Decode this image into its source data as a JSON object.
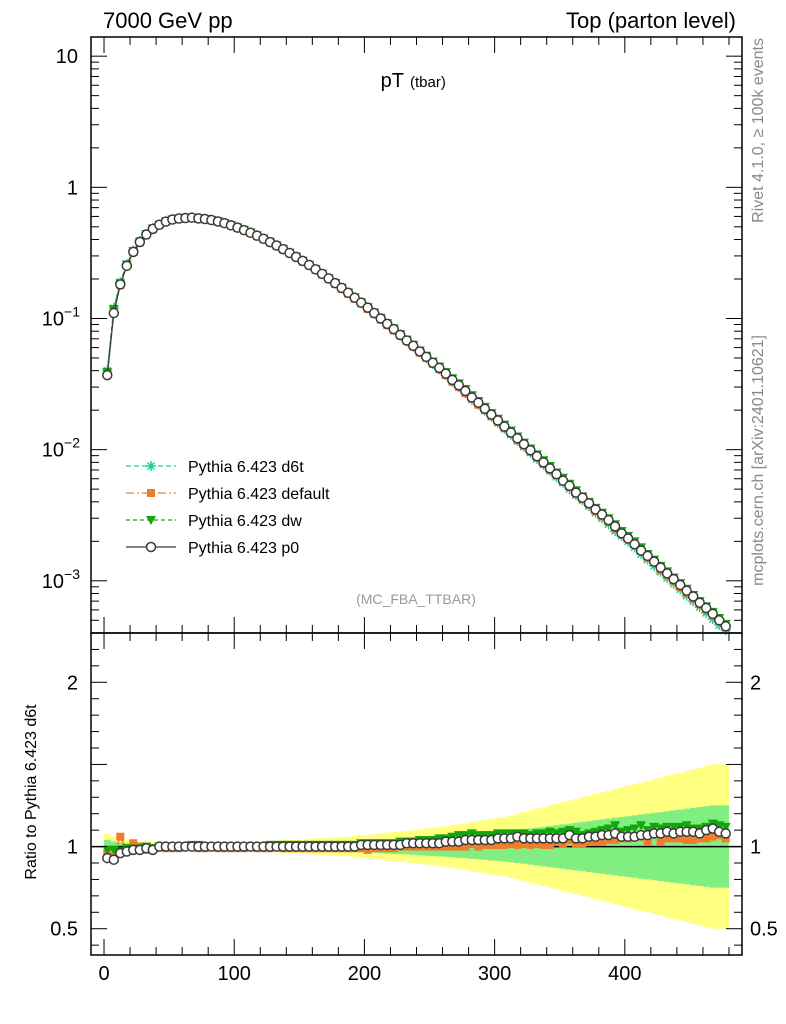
{
  "header": {
    "left": "7000 GeV pp",
    "right": "Top (parton level)"
  },
  "side_labels": {
    "rivet": "Rivet 4.1.0, ≥ 100k events",
    "mcplots": "mcplots.cern.ch [arXiv:2401.10621]"
  },
  "colors": {
    "d6t": "#1fd38a",
    "default": "#f07d2b",
    "dw": "#14a40c",
    "p0": "#3a3a3a",
    "band_outer": "#ffff80",
    "band_inner": "#80ee80"
  },
  "chart_data": [
    {
      "type": "line",
      "title": "pT",
      "title_sub": "(tbar)",
      "analysis": "(MC_FBA_TTBAR)",
      "xlabel": "",
      "ylabel": "",
      "yscale": "log",
      "xlim": [
        -10,
        490
      ],
      "ylim": [
        0.0004,
        14
      ],
      "y_ticks": [
        {
          "value": 10,
          "label": "10"
        },
        {
          "value": 1,
          "label": "1"
        },
        {
          "value": 0.1,
          "label": "10",
          "exp": "−1"
        },
        {
          "value": 0.01,
          "label": "10",
          "exp": "−2"
        },
        {
          "value": 0.001,
          "label": "10",
          "exp": "−3"
        }
      ],
      "x": [
        2.5,
        7.5,
        12.5,
        17.5,
        22.5,
        27.5,
        32.5,
        37.5,
        42.5,
        47.5,
        52.5,
        57.5,
        62.5,
        67.5,
        72.5,
        77.5,
        82.5,
        87.5,
        92.5,
        97.5,
        102.5,
        107.5,
        112.5,
        117.5,
        122.5,
        127.5,
        132.5,
        137.5,
        142.5,
        147.5,
        152.5,
        157.5,
        162.5,
        167.5,
        172.5,
        177.5,
        182.5,
        187.5,
        192.5,
        197.5,
        202.5,
        207.5,
        212.5,
        217.5,
        222.5,
        227.5,
        232.5,
        237.5,
        242.5,
        247.5,
        252.5,
        257.5,
        262.5,
        267.5,
        272.5,
        277.5,
        282.5,
        287.5,
        292.5,
        297.5,
        302.5,
        307.5,
        312.5,
        317.5,
        322.5,
        327.5,
        332.5,
        337.5,
        342.5,
        347.5,
        352.5,
        357.5,
        362.5,
        367.5,
        372.5,
        377.5,
        382.5,
        387.5,
        392.5,
        397.5,
        402.5,
        407.5,
        412.5,
        417.5,
        422.5,
        427.5,
        432.5,
        437.5,
        442.5,
        447.5,
        452.5,
        457.5,
        462.5,
        467.5,
        472.5,
        477.5
      ],
      "series": [
        {
          "name": "Pythia 6.423 d6t",
          "key": "d6t",
          "marker": "star",
          "dash": "5,3",
          "values": [
            0.04,
            0.12,
            0.19,
            0.26,
            0.33,
            0.39,
            0.44,
            0.49,
            0.52,
            0.55,
            0.57,
            0.58,
            0.585,
            0.585,
            0.58,
            0.575,
            0.565,
            0.55,
            0.535,
            0.515,
            0.495,
            0.473,
            0.45,
            0.43,
            0.405,
            0.383,
            0.36,
            0.338,
            0.316,
            0.295,
            0.274,
            0.255,
            0.236,
            0.218,
            0.201,
            0.185,
            0.17,
            0.156,
            0.143,
            0.131,
            0.12,
            0.109,
            0.099,
            0.09,
            0.082,
            0.074,
            0.067,
            0.061,
            0.055,
            0.05,
            0.045,
            0.041,
            0.037,
            0.033,
            0.03,
            0.027,
            0.024,
            0.022,
            0.0198,
            0.0178,
            0.016,
            0.0144,
            0.013,
            0.0117,
            0.0105,
            0.0095,
            0.0085,
            0.0077,
            0.0069,
            0.0062,
            0.0056,
            0.005,
            0.0045,
            0.0041,
            0.0037,
            0.0033,
            0.003,
            0.0027,
            0.0024,
            0.0022,
            0.002,
            0.0018,
            0.0016,
            0.00145,
            0.0013,
            0.00117,
            0.00105,
            0.00095,
            0.00086,
            0.00077,
            0.0007,
            0.00063,
            0.00057,
            0.00051,
            0.00046,
            0.00042
          ]
        },
        {
          "name": "Pythia 6.423 default",
          "key": "default",
          "marker": "square",
          "dash": "8,3,2,3",
          "values": [
            0.038,
            0.115,
            0.18,
            0.255,
            0.32,
            0.38,
            0.435,
            0.48,
            0.515,
            0.545,
            0.565,
            0.575,
            0.58,
            0.585,
            0.575,
            0.57,
            0.56,
            0.545,
            0.53,
            0.51,
            0.49,
            0.47,
            0.448,
            0.425,
            0.402,
            0.38,
            0.358,
            0.335,
            0.314,
            0.293,
            0.272,
            0.253,
            0.234,
            0.216,
            0.199,
            0.183,
            0.168,
            0.154,
            0.141,
            0.13,
            0.118,
            0.108,
            0.098,
            0.089,
            0.081,
            0.074,
            0.067,
            0.061,
            0.055,
            0.05,
            0.045,
            0.041,
            0.037,
            0.033,
            0.03,
            0.027,
            0.0245,
            0.022,
            0.02,
            0.018,
            0.0162,
            0.0146,
            0.0132,
            0.0118,
            0.0107,
            0.0096,
            0.0087,
            0.0078,
            0.007,
            0.0064,
            0.0057,
            0.0052,
            0.0046,
            0.0042,
            0.0038,
            0.0034,
            0.0031,
            0.0028,
            0.0025,
            0.0023,
            0.0021,
            0.0019,
            0.0017,
            0.0015,
            0.0014,
            0.0012,
            0.0011,
            0.001,
            0.0009,
            0.0008,
            0.00073,
            0.00066,
            0.0006,
            0.00054,
            0.00049,
            0.00044
          ]
        },
        {
          "name": "Pythia 6.423 dw",
          "key": "dw",
          "marker": "triangle-down",
          "dash": "4,3",
          "values": [
            0.039,
            0.118,
            0.185,
            0.258,
            0.325,
            0.385,
            0.44,
            0.485,
            0.52,
            0.55,
            0.57,
            0.58,
            0.585,
            0.588,
            0.582,
            0.575,
            0.565,
            0.552,
            0.535,
            0.515,
            0.495,
            0.475,
            0.452,
            0.43,
            0.407,
            0.385,
            0.362,
            0.34,
            0.318,
            0.297,
            0.276,
            0.257,
            0.238,
            0.22,
            0.203,
            0.187,
            0.172,
            0.158,
            0.145,
            0.133,
            0.122,
            0.111,
            0.101,
            0.092,
            0.084,
            0.076,
            0.069,
            0.063,
            0.057,
            0.052,
            0.047,
            0.043,
            0.039,
            0.035,
            0.032,
            0.029,
            0.026,
            0.0235,
            0.0212,
            0.019,
            0.0172,
            0.0155,
            0.014,
            0.0126,
            0.0113,
            0.0102,
            0.0092,
            0.0083,
            0.0075,
            0.0067,
            0.0061,
            0.0055,
            0.0049,
            0.0044,
            0.004,
            0.0036,
            0.0033,
            0.003,
            0.0027,
            0.0024,
            0.0022,
            0.002,
            0.0018,
            0.0016,
            0.00145,
            0.0013,
            0.00118,
            0.00106,
            0.00096,
            0.00087,
            0.00078,
            0.0007,
            0.00064,
            0.00058,
            0.00052,
            0.00047
          ]
        },
        {
          "name": "Pythia 6.423 p0",
          "key": "p0",
          "marker": "circle-open",
          "dash": "",
          "values": [
            0.037,
            0.11,
            0.182,
            0.252,
            0.322,
            0.383,
            0.437,
            0.482,
            0.518,
            0.548,
            0.568,
            0.578,
            0.583,
            0.587,
            0.58,
            0.573,
            0.563,
            0.549,
            0.533,
            0.513,
            0.493,
            0.472,
            0.45,
            0.428,
            0.405,
            0.382,
            0.36,
            0.338,
            0.316,
            0.295,
            0.275,
            0.256,
            0.237,
            0.219,
            0.202,
            0.186,
            0.171,
            0.157,
            0.144,
            0.132,
            0.121,
            0.11,
            0.1,
            0.091,
            0.083,
            0.075,
            0.068,
            0.062,
            0.056,
            0.051,
            0.046,
            0.042,
            0.038,
            0.034,
            0.031,
            0.028,
            0.025,
            0.0228,
            0.0205,
            0.0185,
            0.0167,
            0.015,
            0.0135,
            0.0122,
            0.011,
            0.0099,
            0.0089,
            0.008,
            0.0072,
            0.0065,
            0.0058,
            0.0053,
            0.0047,
            0.0043,
            0.0039,
            0.0035,
            0.0032,
            0.0029,
            0.0026,
            0.0023,
            0.0021,
            0.0019,
            0.0017,
            0.00155,
            0.0014,
            0.00126,
            0.00114,
            0.00103,
            0.00093,
            0.00084,
            0.00076,
            0.00068,
            0.00062,
            0.00056,
            0.0005,
            0.00045
          ]
        }
      ]
    },
    {
      "type": "line",
      "title": "",
      "xlabel": "",
      "ylabel": "Ratio to Pythia 6.423 d6t",
      "yscale": "linear",
      "xlim": [
        -10,
        490
      ],
      "ylim": [
        0.34,
        2.3
      ],
      "x_ticks": [
        0,
        100,
        200,
        300,
        400
      ],
      "y_ticks": [
        {
          "value": 2,
          "label": "2"
        },
        {
          "value": 1,
          "label": "1"
        },
        {
          "value": 0.5,
          "label": "0.5"
        }
      ],
      "reference": 1,
      "band_outer_halfwidth": [
        0.08,
        0.06,
        0.05,
        0.04,
        0.04,
        0.03,
        0.03,
        0.03,
        0.03,
        0.03,
        0.03,
        0.03,
        0.03,
        0.03,
        0.03,
        0.03,
        0.03,
        0.03,
        0.03,
        0.03,
        0.03,
        0.03,
        0.03,
        0.03,
        0.03,
        0.035,
        0.035,
        0.04,
        0.04,
        0.04,
        0.045,
        0.045,
        0.05,
        0.05,
        0.05,
        0.055,
        0.06,
        0.06,
        0.065,
        0.07,
        0.07,
        0.075,
        0.08,
        0.085,
        0.09,
        0.09,
        0.095,
        0.1,
        0.105,
        0.11,
        0.115,
        0.12,
        0.125,
        0.13,
        0.135,
        0.14,
        0.15,
        0.155,
        0.16,
        0.17,
        0.175,
        0.18,
        0.19,
        0.2,
        0.21,
        0.22,
        0.23,
        0.24,
        0.25,
        0.26,
        0.27,
        0.28,
        0.29,
        0.3,
        0.31,
        0.32,
        0.33,
        0.34,
        0.35,
        0.36,
        0.37,
        0.38,
        0.39,
        0.4,
        0.41,
        0.42,
        0.43,
        0.44,
        0.45,
        0.46,
        0.47,
        0.48,
        0.49,
        0.5,
        0.5,
        0.5
      ],
      "series": [
        {
          "name": "Pythia 6.423 default",
          "key": "default",
          "marker": "square",
          "dash": "8,3,2,3",
          "values": [
            0.96,
            0.94,
            1.06,
            0.98,
            1.02,
            1.0,
            0.98,
            0.99,
            1.0,
            0.99,
            0.99,
            0.99,
            1.0,
            1.0,
            0.99,
            0.99,
            1.0,
            0.99,
            0.99,
            0.99,
            0.99,
            0.99,
            1.0,
            0.99,
            0.99,
            0.99,
            1.0,
            0.99,
            0.99,
            0.99,
            0.99,
            0.99,
            0.99,
            0.99,
            0.99,
            0.99,
            0.99,
            0.99,
            0.99,
            0.99,
            0.98,
            0.99,
            0.99,
            0.99,
            0.99,
            1.0,
            1.0,
            1.0,
            1.0,
            1.0,
            1.0,
            1.0,
            1.0,
            1.0,
            1.0,
            1.0,
            1.02,
            1.0,
            1.01,
            1.01,
            1.01,
            1.01,
            1.02,
            1.01,
            1.02,
            1.01,
            1.02,
            1.01,
            1.01,
            1.03,
            1.02,
            1.04,
            1.02,
            1.02,
            1.03,
            1.03,
            1.03,
            1.04,
            1.04,
            1.05,
            1.05,
            1.06,
            1.06,
            1.03,
            1.08,
            1.03,
            1.05,
            1.05,
            1.05,
            1.04,
            1.04,
            1.05,
            1.05,
            1.06,
            1.07,
            1.05
          ]
        },
        {
          "name": "Pythia 6.423 dw",
          "key": "dw",
          "marker": "triangle-down",
          "dash": "4,3",
          "values": [
            0.98,
            0.98,
            0.97,
            0.99,
            0.98,
            0.99,
            1.0,
            0.99,
            1.0,
            1.0,
            1.0,
            1.0,
            1.0,
            1.01,
            1.01,
            1.0,
            1.0,
            1.0,
            1.0,
            1.0,
            1.0,
            1.0,
            1.0,
            1.0,
            1.0,
            1.01,
            1.01,
            1.01,
            1.01,
            1.01,
            1.01,
            1.01,
            1.01,
            1.01,
            1.01,
            1.01,
            1.01,
            1.01,
            1.01,
            1.02,
            1.02,
            1.02,
            1.02,
            1.02,
            1.02,
            1.03,
            1.03,
            1.03,
            1.04,
            1.04,
            1.04,
            1.05,
            1.05,
            1.06,
            1.07,
            1.07,
            1.08,
            1.07,
            1.07,
            1.07,
            1.08,
            1.08,
            1.08,
            1.08,
            1.08,
            1.07,
            1.08,
            1.08,
            1.09,
            1.08,
            1.09,
            1.1,
            1.09,
            1.07,
            1.08,
            1.09,
            1.1,
            1.11,
            1.13,
            1.09,
            1.1,
            1.11,
            1.13,
            1.1,
            1.12,
            1.11,
            1.12,
            1.12,
            1.12,
            1.13,
            1.11,
            1.11,
            1.12,
            1.14,
            1.13,
            1.12
          ]
        },
        {
          "name": "Pythia 6.423 p0",
          "key": "p0",
          "marker": "circle-open",
          "dash": "",
          "values": [
            0.93,
            0.92,
            0.96,
            0.97,
            0.98,
            0.98,
            0.99,
            0.98,
            1.0,
            1.0,
            1.0,
            1.0,
            1.0,
            1.0,
            1.0,
            1.0,
            1.0,
            1.0,
            1.0,
            1.0,
            1.0,
            1.0,
            1.0,
            1.0,
            1.0,
            1.0,
            1.0,
            1.0,
            1.0,
            1.0,
            1.0,
            1.0,
            1.0,
            1.0,
            1.0,
            1.0,
            1.0,
            1.0,
            1.0,
            1.01,
            1.01,
            1.01,
            1.01,
            1.01,
            1.01,
            1.01,
            1.02,
            1.02,
            1.02,
            1.02,
            1.02,
            1.02,
            1.03,
            1.03,
            1.03,
            1.04,
            1.04,
            1.04,
            1.04,
            1.04,
            1.05,
            1.05,
            1.05,
            1.06,
            1.05,
            1.05,
            1.05,
            1.05,
            1.05,
            1.05,
            1.05,
            1.07,
            1.05,
            1.05,
            1.06,
            1.06,
            1.07,
            1.07,
            1.08,
            1.06,
            1.06,
            1.06,
            1.07,
            1.07,
            1.08,
            1.08,
            1.09,
            1.08,
            1.09,
            1.09,
            1.09,
            1.08,
            1.1,
            1.11,
            1.09,
            1.08
          ]
        }
      ]
    }
  ]
}
